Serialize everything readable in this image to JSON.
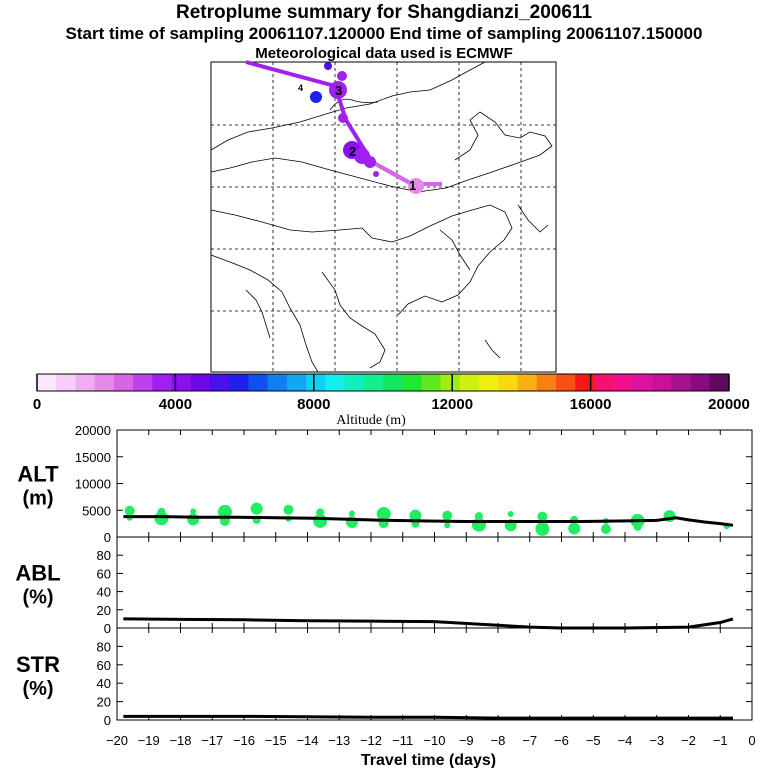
{
  "header": {
    "title": "Retroplume summary for Shangdianzi_200611",
    "subtitle": "Start time of sampling 20061107.120000     End time of sampling 20061107.150000",
    "met_line": "Meteorological data used is ECMWF"
  },
  "map": {
    "markers": [
      "1",
      "2",
      "3",
      "4"
    ]
  },
  "colorbar": {
    "label": "Altitude (m)",
    "ticks": [
      "0",
      "4000",
      "8000",
      "12000",
      "16000",
      "20000"
    ],
    "colors": [
      "#fbe6fb",
      "#f7ccf7",
      "#f0aef0",
      "#e68ae8",
      "#d766e5",
      "#c040ee",
      "#a020f0",
      "#8a10f0",
      "#6e08e8",
      "#4a10ee",
      "#2020ee",
      "#1050ee",
      "#1080f0",
      "#10a8f0",
      "#10d0f0",
      "#10eeee",
      "#10eebe",
      "#10ee90",
      "#10e860",
      "#20e830",
      "#60e820",
      "#a0ee10",
      "#d0f010",
      "#f0f010",
      "#f8d810",
      "#f8b010",
      "#f88010",
      "#f85010",
      "#f81818",
      "#f8106e",
      "#f01090",
      "#e010a0",
      "#c81098",
      "#a81090",
      "#880c80",
      "#600860"
    ]
  },
  "chart_data": [
    {
      "type": "line",
      "title": "ALT (m)",
      "ylabel_main": "ALT",
      "ylabel_unit": "(m)",
      "xlim": [
        -20,
        0
      ],
      "ylim": [
        0,
        20000
      ],
      "yticks": [
        "0",
        "5000",
        "10000",
        "15000",
        "20000"
      ],
      "x": [
        -19.8,
        -18.6,
        -17.4,
        -16.2,
        -15,
        -13.8,
        -12.6,
        -11.4,
        -10.2,
        -9,
        -7.8,
        -6.6,
        -5.4,
        -4.2,
        -3,
        -2.4,
        -2,
        -1.5,
        -1,
        -0.6
      ],
      "values": [
        3800,
        3800,
        3700,
        3700,
        3600,
        3500,
        3300,
        3100,
        3000,
        2900,
        2900,
        2900,
        2900,
        3000,
        3100,
        3600,
        3200,
        2800,
        2500,
        2200
      ],
      "scatter": [
        {
          "x": -19.6,
          "y": 3600
        },
        {
          "x": -19.6,
          "y": 4900
        },
        {
          "x": -18.6,
          "y": 3500
        },
        {
          "x": -18.6,
          "y": 4700
        },
        {
          "x": -17.6,
          "y": 3300
        },
        {
          "x": -17.6,
          "y": 4800
        },
        {
          "x": -16.6,
          "y": 3000
        },
        {
          "x": -16.6,
          "y": 4700
        },
        {
          "x": -15.6,
          "y": 3200
        },
        {
          "x": -15.6,
          "y": 5300
        },
        {
          "x": -14.6,
          "y": 3400
        },
        {
          "x": -14.6,
          "y": 5100
        },
        {
          "x": -13.6,
          "y": 3000
        },
        {
          "x": -13.6,
          "y": 4600
        },
        {
          "x": -12.6,
          "y": 2800
        },
        {
          "x": -12.6,
          "y": 4400
        },
        {
          "x": -11.6,
          "y": 2600
        },
        {
          "x": -11.6,
          "y": 4300
        },
        {
          "x": -10.6,
          "y": 2500
        },
        {
          "x": -10.6,
          "y": 4000
        },
        {
          "x": -9.6,
          "y": 2200
        },
        {
          "x": -9.6,
          "y": 4000
        },
        {
          "x": -8.6,
          "y": 2300
        },
        {
          "x": -8.6,
          "y": 3900
        },
        {
          "x": -7.6,
          "y": 2200
        },
        {
          "x": -7.6,
          "y": 4300
        },
        {
          "x": -6.6,
          "y": 3800
        },
        {
          "x": -6.6,
          "y": 1500
        },
        {
          "x": -5.6,
          "y": 3200
        },
        {
          "x": -5.6,
          "y": 1600
        },
        {
          "x": -4.6,
          "y": 3000
        },
        {
          "x": -4.6,
          "y": 1500
        },
        {
          "x": -3.6,
          "y": 3000
        },
        {
          "x": -3.6,
          "y": 1900
        },
        {
          "x": -2.6,
          "y": 3900
        },
        {
          "x": -0.8,
          "y": 2000
        }
      ]
    },
    {
      "type": "line",
      "title": "ABL (%)",
      "ylabel_main": "ABL",
      "ylabel_unit": "(%)",
      "xlim": [
        -20,
        0
      ],
      "ylim": [
        0,
        100
      ],
      "yticks": [
        "0",
        "20",
        "40",
        "60",
        "80"
      ],
      "x": [
        -19.8,
        -18,
        -16,
        -14,
        -12,
        -10,
        -8,
        -7,
        -6,
        -4,
        -2,
        -1,
        -0.6
      ],
      "values": [
        10,
        9.5,
        9,
        8,
        7.5,
        7,
        3,
        1,
        0,
        0,
        1,
        6,
        10
      ]
    },
    {
      "type": "line",
      "title": "STR (%)",
      "ylabel_main": "STR",
      "ylabel_unit": "(%)",
      "xlim": [
        -20,
        0
      ],
      "ylim": [
        0,
        100
      ],
      "yticks": [
        "0",
        "20",
        "40",
        "60",
        "80"
      ],
      "xticks": [
        "-20",
        "-19",
        "-18",
        "-17",
        "-16",
        "-15",
        "-14",
        "-13",
        "-12",
        "-11",
        "-10",
        "-9",
        "-8",
        "-7",
        "-6",
        "-5",
        "-4",
        "-3",
        "-2",
        "-1",
        "0"
      ],
      "xlabel": "Travel time (days)",
      "x": [
        -19.8,
        -16,
        -12,
        -10,
        -8,
        -6,
        -4,
        -2,
        -0.6
      ],
      "values": [
        4,
        4,
        3,
        3,
        2,
        2,
        2,
        2,
        2
      ]
    }
  ]
}
